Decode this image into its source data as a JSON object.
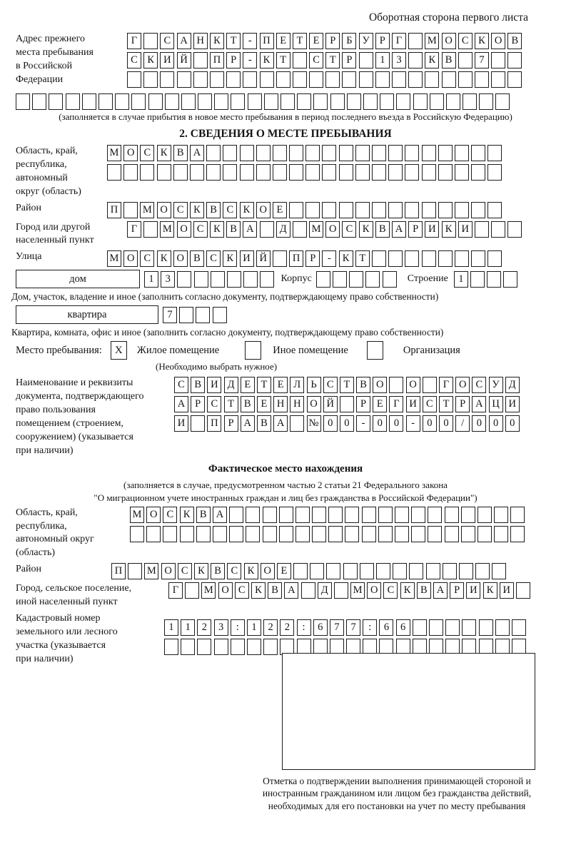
{
  "page_title": "Оборотная сторона первого листа",
  "prev_address": {
    "label": "Адрес прежнего\nместа пребывания\nв Российской\nФедерации",
    "row1": "Г САНКТ-ПЕТЕРБУРГ МОСКОВ",
    "row2": "СКИЙ ПР-КТ СТР 13 КВ 7  ",
    "row3": "                        ",
    "row4": "                              ",
    "note": "(заполняется в случае прибытия в новое место пребывания в период последнего въезда в Российскую Федерацию)"
  },
  "section2": {
    "heading": "2. СВЕДЕНИЯ О МЕСТЕ ПРЕБЫВАНИЯ",
    "oblast": {
      "label": "Область, край,\nреспублика,\nавтономный\nокруг (область)",
      "row1": "МОСКВА                  ",
      "row2": "                        "
    },
    "raion": {
      "label": "Район",
      "row": "П МОСКВСКОЕ             "
    },
    "gorod": {
      "label": "Город или другой\nнаселенный пункт",
      "row": "Г МОСКВА Д МОСКВАРИКИ   "
    },
    "ulitsa": {
      "label": "Улица",
      "row": "МОСКОВСКИЙ ПР-КТ        "
    },
    "dom": {
      "label": "дом",
      "cells": "13      "
    },
    "korpus": {
      "label": "Корпус",
      "cells": "     "
    },
    "stroenie": {
      "label": "Строение",
      "cells": "1   "
    },
    "dom_caption": "Дом, участок, владение и иное (заполнить согласно документу, подтверждающему право собственности)",
    "kvartira": {
      "label": "квартира",
      "cells": "7   "
    },
    "kvartira_caption": "Квартира, комната, офис и иное (заполнить согласно документу, подтверждающему право собственности)",
    "residence": {
      "label": "Место пребывания:",
      "opt1_mark": "X",
      "opt1": "Жилое помещение",
      "opt2_mark": "",
      "opt2": "Иное помещение",
      "opt3_mark": "",
      "opt3": "Организация",
      "note": "(Необходимо выбрать нужное)"
    },
    "document": {
      "label": "Наименование и реквизиты\nдокумента, подтверждающего\nправо пользования\nпомещением (строением,\nсооружением) (указывается\nпри наличии)",
      "row1": "СВИДЕТЕЛЬСТВО О ГОСУД",
      "row2": "АРСТВЕННОЙ РЕГИСТРАЦИ",
      "row3": "И ПРАВА №00-00-00/000"
    }
  },
  "actual_location": {
    "heading": "Фактическое место нахождения",
    "note1": "(заполняется в случае, предусмотренном частью 2 статьи 21 Федерального закона",
    "note2": "\"О миграционном учете иностранных граждан и лиц без гражданства в Российской Федерации\")",
    "oblast": {
      "label": "Область, край,\nреспублика,\nавтономный округ\n(область)",
      "row1": "МОСКВА                  ",
      "row2": "                        "
    },
    "raion": {
      "label": "Район",
      "row": "П МОСКВСКОЕ             "
    },
    "gorod": {
      "label": "Город, сельское поселение,\nиной населенный пункт",
      "row": "Г МОСКВА Д МОСКВАРИКИ "
    },
    "kadastr": {
      "label": "Кадастровый номер\nземельного или лесного\nучастка (указывается\nпри наличии)",
      "row1": "1123:122:677:66       ",
      "row2": "                      "
    },
    "stamp_caption": "Отметка о подтверждении выполнения принимающей стороной и иностранным гражданином или лицом без гражданства действий, необходимых для его постановки на учет по месту пребывания"
  }
}
